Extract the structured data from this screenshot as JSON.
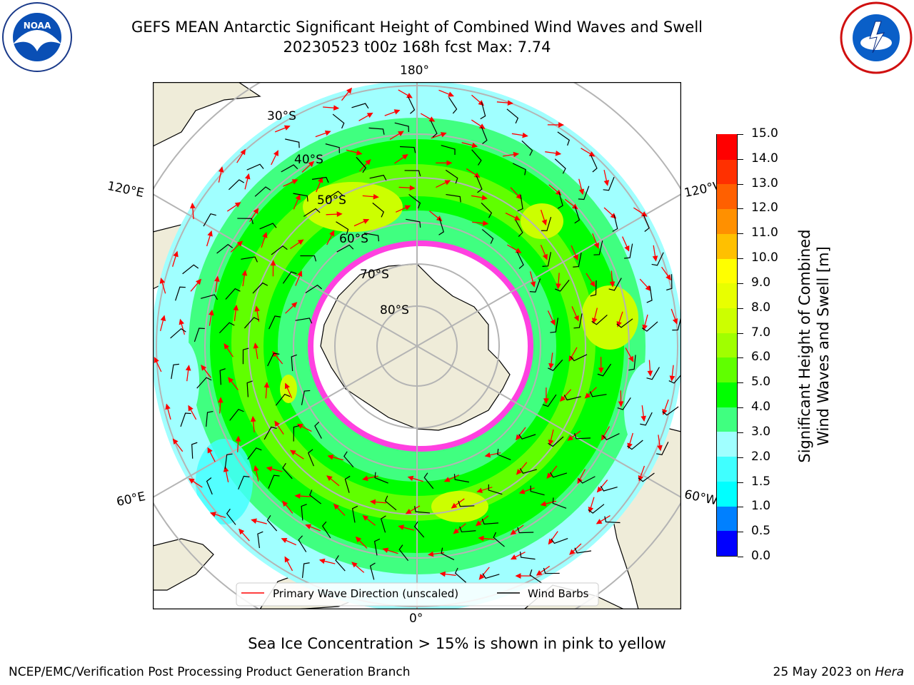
{
  "header": {
    "title_line1": "GEFS MEAN Antarctic Significant Height of Combined Wind Waves and Swell",
    "title_line2": "20230523 t00z 168h fcst   Max: 7.74"
  },
  "map": {
    "longitude_labels": {
      "top": "180°",
      "bottom": "0°",
      "left_upper": "120°E",
      "left_lower": "60°E",
      "right_upper": "120°W",
      "right_lower": "60°W"
    },
    "latitude_labels": [
      "30°S",
      "40°S",
      "50°S",
      "60°S",
      "70°S",
      "80°S"
    ],
    "legend": {
      "wave_label": "Primary Wave Direction (unscaled)",
      "barb_label": "Wind Barbs",
      "wave_color": "#ff0000",
      "barb_color": "#000000"
    }
  },
  "colorbar": {
    "label_line1": "Significant Height of Combined",
    "label_line2": "Wind Waves and Swell [m]",
    "ticks": [
      "0.0",
      "0.5",
      "1.0",
      "1.5",
      "2.0",
      "3.0",
      "4.0",
      "5.0",
      "6.0",
      "7.0",
      "8.0",
      "9.0",
      "10.0",
      "11.0",
      "12.0",
      "13.0",
      "14.0",
      "15.0"
    ],
    "colors": [
      "#0000ff",
      "#0080ff",
      "#00ffff",
      "#40ffff",
      "#a0ffff",
      "#40ff80",
      "#00ff00",
      "#60ff00",
      "#a0ff00",
      "#ccff00",
      "#e8ff00",
      "#ffff00",
      "#ffc000",
      "#ff9000",
      "#ff6000",
      "#ff3000",
      "#ff0000"
    ]
  },
  "footer": {
    "note": "Sea Ice Concentration > 15% is shown in pink to yellow",
    "credit": "NCEP/EMC/Verification Post Processing Product Generation Branch",
    "date": "25 May 2023 on",
    "host": "Hera"
  }
}
